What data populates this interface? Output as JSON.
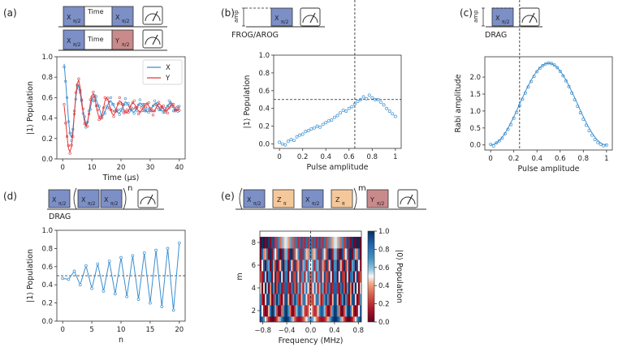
{
  "panels": {
    "a": {
      "label": "(a)",
      "rows": [
        {
          "g1": "X",
          "s1": "π/2",
          "time": "Time",
          "g2": "X",
          "s2": "π/2"
        },
        {
          "g1": "X",
          "s1": "π/2",
          "time": "Time",
          "g2": "Y",
          "s2": "π/2"
        }
      ]
    },
    "b": {
      "label": "(b)",
      "amp": "amp",
      "g": "X",
      "s": "π/2",
      "caption": "FROG/AROG"
    },
    "c": {
      "label": "(c)",
      "amp": "amp",
      "g": "X",
      "s": "π/2",
      "caption": "DRAG"
    },
    "d": {
      "label": "(d)",
      "g1": "X",
      "s1": "π/2",
      "g2": "X",
      "s2": "π/2",
      "g3": "X",
      "s3": "π/2",
      "sup": "n",
      "caption": "DRAG"
    },
    "e": {
      "label": "(e)",
      "g1": "X",
      "s1": "π/2",
      "g2": "Z",
      "s2": "π",
      "g3": "X",
      "s3": "π/2",
      "g4": "Z",
      "s4": "π",
      "sup": "m",
      "g5": "Y",
      "s5": "π/2"
    }
  },
  "colors": {
    "x_series": "#3a8fd0",
    "y_series": "#e0393b",
    "blue_gate": "#7c8fc6",
    "red_gate": "#c98a8c",
    "orange_gate": "#f5c89b"
  },
  "chart_data": [
    {
      "id": "a",
      "type": "line",
      "xlabel": "Time (μs)",
      "ylabel": "|1⟩ Population",
      "xlim": [
        -2,
        42
      ],
      "ylim": [
        0,
        1.0
      ],
      "xticks": [
        0,
        10,
        20,
        30,
        40
      ],
      "yticks": [
        0.0,
        0.2,
        0.4,
        0.6,
        0.8,
        1.0
      ],
      "legend": "top-right",
      "series": [
        {
          "name": "X",
          "color": "#3a8fd0",
          "x": [
            0.5,
            1,
            1.5,
            2,
            2.5,
            3,
            3.5,
            4,
            4.5,
            5,
            5.5,
            6,
            6.5,
            7,
            7.5,
            8,
            8.5,
            9,
            9.5,
            10,
            10.5,
            11,
            11.5,
            12,
            12.5,
            13,
            13.5,
            14,
            14.5,
            15,
            15.5,
            16,
            16.5,
            17,
            17.5,
            18,
            18.5,
            19,
            19.5,
            20,
            20.5,
            21,
            21.5,
            22,
            22.5,
            23,
            23.5,
            24,
            24.5,
            25,
            25.5,
            26,
            26.5,
            27,
            27.5,
            28,
            28.5,
            29,
            29.5,
            30,
            30.5,
            31,
            31.5,
            32,
            32.5,
            33,
            33.5,
            34,
            34.5,
            35,
            35.5,
            36,
            36.5,
            37,
            37.5,
            38,
            38.5,
            39,
            39.5,
            40
          ],
          "y": [
            0.93,
            0.76,
            0.57,
            0.38,
            0.24,
            0.21,
            0.29,
            0.44,
            0.6,
            0.7,
            0.72,
            0.65,
            0.54,
            0.46,
            0.4,
            0.34,
            0.36,
            0.44,
            0.5,
            0.57,
            0.6,
            0.62,
            0.58,
            0.54,
            0.5,
            0.45,
            0.42,
            0.43,
            0.46,
            0.5,
            0.53,
            0.56,
            0.57,
            0.55,
            0.52,
            0.5,
            0.47,
            0.45,
            0.45,
            0.47,
            0.5,
            0.53,
            0.56,
            0.55,
            0.53,
            0.5,
            0.48,
            0.46,
            0.46,
            0.48,
            0.5,
            0.53,
            0.55,
            0.54,
            0.52,
            0.5,
            0.47,
            0.46,
            0.47,
            0.48,
            0.5,
            0.52,
            0.54,
            0.55,
            0.53,
            0.51,
            0.48,
            0.47,
            0.47,
            0.48,
            0.5,
            0.52,
            0.54,
            0.55,
            0.52,
            0.5,
            0.48,
            0.47,
            0.48,
            0.5
          ]
        },
        {
          "name": "Y",
          "color": "#e0393b",
          "x": [
            0.5,
            1,
            1.5,
            2,
            2.5,
            3,
            3.5,
            4,
            4.5,
            5,
            5.5,
            6,
            6.5,
            7,
            7.5,
            8,
            8.5,
            9,
            9.5,
            10,
            10.5,
            11,
            11.5,
            12,
            12.5,
            13,
            13.5,
            14,
            14.5,
            15,
            15.5,
            16,
            16.5,
            17,
            17.5,
            18,
            18.5,
            19,
            19.5,
            20,
            20.5,
            21,
            21.5,
            22,
            22.5,
            23,
            23.5,
            24,
            24.5,
            25,
            25.5,
            26,
            26.5,
            27,
            27.5,
            28,
            28.5,
            29,
            29.5,
            30,
            30.5,
            31,
            31.5,
            32,
            32.5,
            33,
            33.5,
            34,
            34.5,
            35,
            35.5,
            36,
            36.5,
            37,
            37.5,
            38,
            38.5,
            39,
            39.5,
            40
          ],
          "y": [
            0.52,
            0.38,
            0.22,
            0.1,
            0.07,
            0.12,
            0.25,
            0.44,
            0.62,
            0.74,
            0.77,
            0.7,
            0.58,
            0.46,
            0.36,
            0.32,
            0.35,
            0.44,
            0.55,
            0.62,
            0.64,
            0.6,
            0.52,
            0.45,
            0.4,
            0.39,
            0.43,
            0.5,
            0.57,
            0.6,
            0.58,
            0.53,
            0.48,
            0.44,
            0.43,
            0.45,
            0.5,
            0.54,
            0.57,
            0.56,
            0.52,
            0.48,
            0.46,
            0.45,
            0.47,
            0.5,
            0.53,
            0.55,
            0.54,
            0.52,
            0.49,
            0.47,
            0.46,
            0.47,
            0.49,
            0.52,
            0.54,
            0.54,
            0.52,
            0.49,
            0.47,
            0.46,
            0.47,
            0.5,
            0.52,
            0.54,
            0.53,
            0.51,
            0.49,
            0.47,
            0.47,
            0.48,
            0.5,
            0.52,
            0.53,
            0.52,
            0.5,
            0.48,
            0.48,
            0.49
          ]
        }
      ]
    },
    {
      "id": "b",
      "type": "scatter",
      "xlabel": "Pulse amplitude",
      "ylabel": "|1⟩ Population",
      "xlim": [
        -0.05,
        1.05
      ],
      "ylim": [
        -0.05,
        1.0
      ],
      "xticks": [
        0.0,
        0.2,
        0.4,
        0.6,
        0.8,
        1.0
      ],
      "yticks": [
        0.0,
        0.2,
        0.4,
        0.6,
        0.8,
        1.0
      ],
      "vline": 0.65,
      "hline": 0.5,
      "x": [
        0.0,
        0.025,
        0.05,
        0.075,
        0.1,
        0.125,
        0.15,
        0.175,
        0.2,
        0.225,
        0.25,
        0.275,
        0.3,
        0.325,
        0.35,
        0.375,
        0.4,
        0.425,
        0.45,
        0.475,
        0.5,
        0.525,
        0.55,
        0.575,
        0.6,
        0.625,
        0.65,
        0.675,
        0.7,
        0.725,
        0.75,
        0.775,
        0.8,
        0.825,
        0.85,
        0.875,
        0.9,
        0.925,
        0.95,
        0.975,
        1.0
      ],
      "y": [
        0.02,
        0.0,
        -0.01,
        0.03,
        0.05,
        0.04,
        0.08,
        0.1,
        0.11,
        0.14,
        0.15,
        0.17,
        0.18,
        0.2,
        0.19,
        0.22,
        0.24,
        0.26,
        0.27,
        0.3,
        0.32,
        0.35,
        0.38,
        0.37,
        0.4,
        0.42,
        0.45,
        0.48,
        0.5,
        0.53,
        0.51,
        0.55,
        0.52,
        0.5,
        0.5,
        0.47,
        0.44,
        0.4,
        0.37,
        0.34,
        0.31
      ]
    },
    {
      "id": "c",
      "type": "scatter",
      "xlabel": "Pulse amplitude",
      "ylabel": "Rabi amplitude",
      "xlim": [
        -0.05,
        1.05
      ],
      "ylim": [
        -0.15,
        2.6
      ],
      "xticks": [
        0.0,
        0.2,
        0.4,
        0.6,
        0.8,
        1.0
      ],
      "yticks": [
        0.0,
        0.5,
        1.0,
        1.5,
        2.0
      ],
      "vline": 0.25,
      "x": [
        0.0,
        0.025,
        0.05,
        0.075,
        0.1,
        0.125,
        0.15,
        0.175,
        0.2,
        0.225,
        0.25,
        0.275,
        0.3,
        0.325,
        0.35,
        0.375,
        0.4,
        0.425,
        0.45,
        0.475,
        0.5,
        0.525,
        0.55,
        0.575,
        0.6,
        0.625,
        0.65,
        0.675,
        0.7,
        0.725,
        0.75,
        0.775,
        0.8,
        0.825,
        0.85,
        0.875,
        0.9,
        0.925,
        0.95,
        0.975,
        1.0
      ],
      "y": [
        0.02,
        -0.03,
        0.06,
        0.12,
        0.2,
        0.33,
        0.46,
        0.6,
        0.79,
        0.96,
        1.16,
        1.35,
        1.53,
        1.71,
        1.87,
        2.02,
        2.16,
        2.26,
        2.34,
        2.39,
        2.42,
        2.4,
        2.36,
        2.28,
        2.17,
        2.04,
        1.89,
        1.72,
        1.53,
        1.33,
        1.14,
        0.95,
        0.76,
        0.58,
        0.42,
        0.29,
        0.16,
        0.07,
        0.02,
        -0.02,
        0.0
      ],
      "fit": true
    },
    {
      "id": "d",
      "type": "line",
      "xlabel": "n",
      "ylabel": "|1⟩ Population",
      "xlim": [
        -1,
        21
      ],
      "ylim": [
        0.0,
        1.0
      ],
      "xticks": [
        0,
        5,
        10,
        15,
        20
      ],
      "yticks": [
        0.0,
        0.2,
        0.4,
        0.6,
        0.8,
        1.0
      ],
      "hline": 0.5,
      "x": [
        0,
        1,
        2,
        3,
        4,
        5,
        6,
        7,
        8,
        9,
        10,
        11,
        12,
        13,
        14,
        15,
        16,
        17,
        18,
        19,
        20
      ],
      "y": [
        0.47,
        0.46,
        0.55,
        0.4,
        0.61,
        0.36,
        0.63,
        0.33,
        0.66,
        0.3,
        0.7,
        0.27,
        0.72,
        0.24,
        0.75,
        0.2,
        0.78,
        0.16,
        0.8,
        0.12,
        0.86
      ]
    },
    {
      "id": "e",
      "type": "heatmap",
      "xlabel": "Frequency (MHz)",
      "ylabel": "m",
      "xlim": [
        -0.85,
        0.85
      ],
      "ylim": [
        1,
        9
      ],
      "xticks": [
        -0.8,
        -0.4,
        0.0,
        0.4,
        0.8
      ],
      "xtick_labels": [
        "−0.8",
        "−0.4",
        "0.0",
        "0.4",
        "0.8"
      ],
      "yticks": [
        2,
        4,
        6,
        8
      ],
      "vline": 0.0,
      "colorbar": {
        "label": "|0⟩ Population",
        "ticks": [
          0.0,
          0.2,
          0.4,
          0.6,
          0.8,
          1.0
        ],
        "colormap": "RdBu"
      }
    }
  ]
}
